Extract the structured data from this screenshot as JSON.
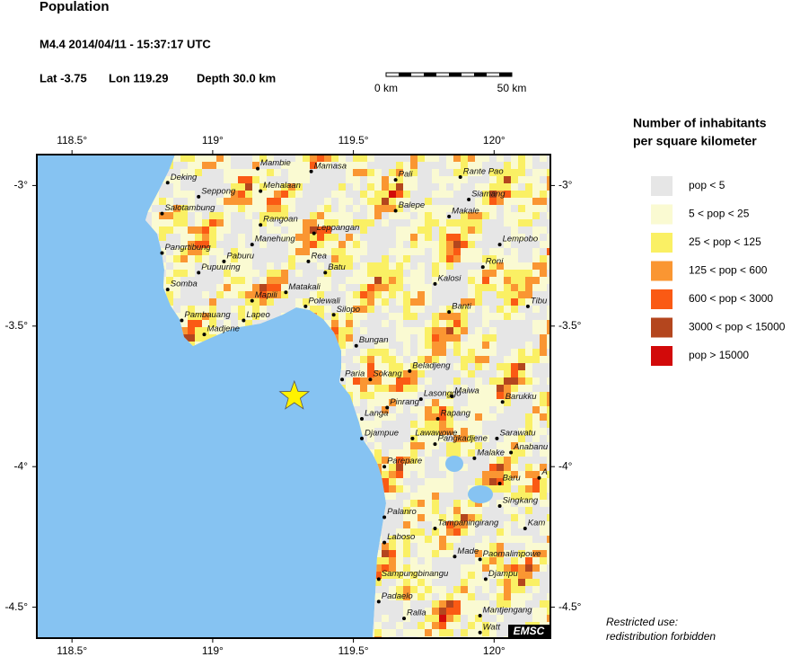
{
  "header": {
    "title": "Population",
    "event": "M4.4  2014/04/11 - 15:37:17 UTC",
    "lat": "Lat -3.75",
    "lon": "Lon 119.29",
    "depth": "Depth  30.0 km"
  },
  "scale_bar": {
    "start": "0 km",
    "end": "50 km"
  },
  "map": {
    "lon_range": [
      118.375,
      120.2
    ],
    "lat_range": [
      -4.61,
      -2.89
    ],
    "lon_ticks": [
      {
        "value": 118.5,
        "label": "118.5°"
      },
      {
        "value": 119,
        "label": "119°"
      },
      {
        "value": 119.5,
        "label": "119.5°"
      },
      {
        "value": 120,
        "label": "120°"
      }
    ],
    "lat_ticks": [
      {
        "value": -3,
        "label": "-3°"
      },
      {
        "value": -3.5,
        "label": "-3.5°"
      },
      {
        "value": -4,
        "label": "-4°"
      },
      {
        "value": -4.5,
        "label": "-4.5°"
      }
    ],
    "epicenter": {
      "lon": 119.29,
      "lat": -3.75
    },
    "cities": [
      {
        "name": "Deking",
        "lon": 118.84,
        "lat": -2.99
      },
      {
        "name": "Seppong",
        "lon": 118.95,
        "lat": -3.04
      },
      {
        "name": "Salotambung",
        "lon": 118.82,
        "lat": -3.1
      },
      {
        "name": "Mambie",
        "lon": 119.16,
        "lat": -2.94
      },
      {
        "name": "Mehalaan",
        "lon": 119.17,
        "lat": -3.02
      },
      {
        "name": "Mamasa",
        "lon": 119.35,
        "lat": -2.95
      },
      {
        "name": "Pali",
        "lon": 119.65,
        "lat": -2.98
      },
      {
        "name": "Rante Pao",
        "lon": 119.88,
        "lat": -2.97
      },
      {
        "name": "Siamang",
        "lon": 119.91,
        "lat": -3.05
      },
      {
        "name": "Balepe",
        "lon": 119.65,
        "lat": -3.09
      },
      {
        "name": "Makale",
        "lon": 119.84,
        "lat": -3.11
      },
      {
        "name": "Lempobo",
        "lon": 120.02,
        "lat": -3.21
      },
      {
        "name": "Rangoan",
        "lon": 119.17,
        "lat": -3.14
      },
      {
        "name": "Leppangan",
        "lon": 119.36,
        "lat": -3.17
      },
      {
        "name": "Manehung",
        "lon": 119.14,
        "lat": -3.21
      },
      {
        "name": "Pangrtibung",
        "lon": 118.82,
        "lat": -3.24
      },
      {
        "name": "Paburu",
        "lon": 119.04,
        "lat": -3.27
      },
      {
        "name": "Rea",
        "lon": 119.34,
        "lat": -3.27
      },
      {
        "name": "Batu",
        "lon": 119.4,
        "lat": -3.31
      },
      {
        "name": "Roni",
        "lon": 119.96,
        "lat": -3.29
      },
      {
        "name": "Pupuuring",
        "lon": 118.95,
        "lat": -3.31
      },
      {
        "name": "Kalosi",
        "lon": 119.79,
        "lat": -3.35
      },
      {
        "name": "Somba",
        "lon": 118.84,
        "lat": -3.37
      },
      {
        "name": "Matakali",
        "lon": 119.26,
        "lat": -3.38
      },
      {
        "name": "Mapili",
        "lon": 119.14,
        "lat": -3.41
      },
      {
        "name": "Polewali",
        "lon": 119.33,
        "lat": -3.43
      },
      {
        "name": "Banti",
        "lon": 119.84,
        "lat": -3.45
      },
      {
        "name": "Tibu",
        "lon": 120.12,
        "lat": -3.43
      },
      {
        "name": "Silopo",
        "lon": 119.43,
        "lat": -3.46
      },
      {
        "name": "Pambauang",
        "lon": 118.89,
        "lat": -3.48
      },
      {
        "name": "Lapeo",
        "lon": 119.11,
        "lat": -3.48
      },
      {
        "name": "Madjene",
        "lon": 118.97,
        "lat": -3.53
      },
      {
        "name": "Bungan",
        "lon": 119.51,
        "lat": -3.57
      },
      {
        "name": "Paria",
        "lon": 119.46,
        "lat": -3.69
      },
      {
        "name": "Sokang",
        "lon": 119.56,
        "lat": -3.69
      },
      {
        "name": "Beladjeng",
        "lon": 119.7,
        "lat": -3.66
      },
      {
        "name": "Maiwa",
        "lon": 119.85,
        "lat": -3.75
      },
      {
        "name": "Lasonggo",
        "lon": 119.74,
        "lat": -3.76
      },
      {
        "name": "Barukku",
        "lon": 120.03,
        "lat": -3.77
      },
      {
        "name": "Pinrang",
        "lon": 119.62,
        "lat": -3.79
      },
      {
        "name": "Langa",
        "lon": 119.53,
        "lat": -3.83
      },
      {
        "name": "Rapang",
        "lon": 119.8,
        "lat": -3.83
      },
      {
        "name": "Djampue",
        "lon": 119.53,
        "lat": -3.9
      },
      {
        "name": "Lawawowe",
        "lon": 119.71,
        "lat": -3.9
      },
      {
        "name": "Pangkadjene",
        "lon": 119.79,
        "lat": -3.92
      },
      {
        "name": "Sarawatu",
        "lon": 120.01,
        "lat": -3.9
      },
      {
        "name": "Anabanu",
        "lon": 120.06,
        "lat": -3.95
      },
      {
        "name": "Malake",
        "lon": 119.93,
        "lat": -3.97
      },
      {
        "name": "Parepare",
        "lon": 119.61,
        "lat": -4.0
      },
      {
        "name": "Baru",
        "lon": 120.02,
        "lat": -4.06
      },
      {
        "name": "A",
        "lon": 120.16,
        "lat": -4.04
      },
      {
        "name": "Singkang",
        "lon": 120.02,
        "lat": -4.14
      },
      {
        "name": "Palanro",
        "lon": 119.61,
        "lat": -4.18
      },
      {
        "name": "Tampaningirang",
        "lon": 119.79,
        "lat": -4.22
      },
      {
        "name": "Kam",
        "lon": 120.11,
        "lat": -4.22
      },
      {
        "name": "Laboso",
        "lon": 119.61,
        "lat": -4.27
      },
      {
        "name": "Made",
        "lon": 119.86,
        "lat": -4.32
      },
      {
        "name": "Paomalimpowe",
        "lon": 119.95,
        "lat": -4.33
      },
      {
        "name": "Sampungbinangu",
        "lon": 119.59,
        "lat": -4.4
      },
      {
        "name": "Djampu",
        "lon": 119.97,
        "lat": -4.4
      },
      {
        "name": "Padaelo",
        "lon": 119.59,
        "lat": -4.48
      },
      {
        "name": "Ralla",
        "lon": 119.68,
        "lat": -4.54
      },
      {
        "name": "Mantjengang",
        "lon": 119.95,
        "lat": -4.53
      },
      {
        "name": "Watt",
        "lon": 119.95,
        "lat": -4.59
      }
    ],
    "badge": "EMSC"
  },
  "legend": {
    "title": [
      "Number of inhabitants",
      "per square kilometer"
    ],
    "items": [
      {
        "label": "pop < 5",
        "color": "#e6e6e6"
      },
      {
        "label": "5 < pop < 25",
        "color": "#fafad2"
      },
      {
        "label": "25 < pop < 125",
        "color": "#faf064"
      },
      {
        "label": "125 < pop < 600",
        "color": "#fa9632"
      },
      {
        "label": "600 < pop < 3000",
        "color": "#fa5a14"
      },
      {
        "label": "3000 < pop < 15000",
        "color": "#b4461e"
      },
      {
        "label": "pop > 15000",
        "color": "#d20a0a"
      }
    ]
  },
  "footer": [
    "Restricted use:",
    "redistribution forbidden"
  ]
}
